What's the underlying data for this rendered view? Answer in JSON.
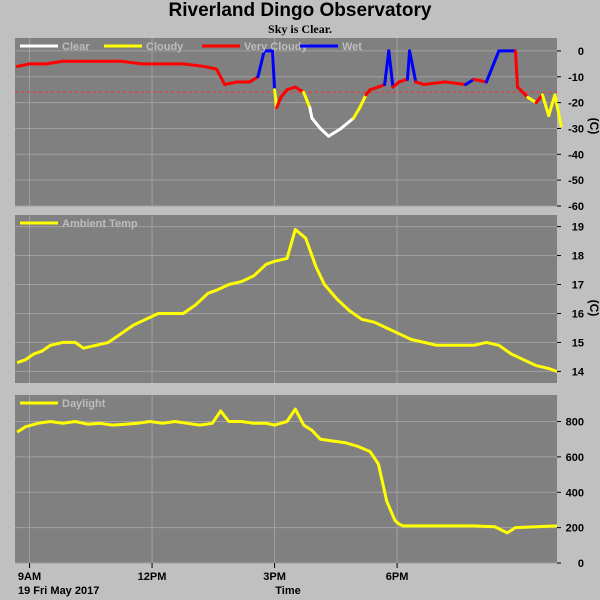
{
  "page": {
    "title": "Riverland Dingo Observatory",
    "subtitle": "Sky is Clear.",
    "date": "19 Fri May 2017",
    "xlabel": "Time"
  },
  "chart_data": [
    {
      "type": "line",
      "title": "",
      "unit": "(C)",
      "x_ticks": [
        "9AM",
        "12PM",
        "3PM",
        "6PM"
      ],
      "x_tick_values": [
        8.8,
        11.75,
        14.7,
        17.65
      ],
      "xlim": [
        8.45,
        21.5
      ],
      "ylim": [
        -60,
        5
      ],
      "y_ticks": [
        0,
        -10,
        -20,
        -30,
        -40,
        -50,
        -60
      ],
      "threshold_line": -16,
      "series": [
        {
          "name": "Clear",
          "color": "#ffffff"
        },
        {
          "name": "Cloudy",
          "color": "#ffff00"
        },
        {
          "name": "Very Cloudy",
          "color": "#ff0000"
        },
        {
          "name": "Wet",
          "color": "#0000ff"
        }
      ],
      "points": [
        [
          8.5,
          -6,
          "Very Cloudy"
        ],
        [
          8.8,
          -5,
          "Very Cloudy"
        ],
        [
          9.2,
          -5,
          "Very Cloudy"
        ],
        [
          9.6,
          -4,
          "Very Cloudy"
        ],
        [
          10.0,
          -4,
          "Very Cloudy"
        ],
        [
          10.5,
          -4,
          "Very Cloudy"
        ],
        [
          11.0,
          -4,
          "Very Cloudy"
        ],
        [
          11.5,
          -5,
          "Very Cloudy"
        ],
        [
          12.0,
          -5,
          "Very Cloudy"
        ],
        [
          12.5,
          -5,
          "Very Cloudy"
        ],
        [
          13.0,
          -6,
          "Very Cloudy"
        ],
        [
          13.3,
          -7,
          "Very Cloudy"
        ],
        [
          13.5,
          -13,
          "Very Cloudy"
        ],
        [
          13.8,
          -12,
          "Very Cloudy"
        ],
        [
          14.1,
          -12,
          "Very Cloudy"
        ],
        [
          14.3,
          -10,
          "Very Cloudy"
        ],
        [
          14.45,
          0,
          "Wet"
        ],
        [
          14.65,
          0,
          "Wet"
        ],
        [
          14.7,
          -15,
          "Wet"
        ],
        [
          14.75,
          -22,
          "Cloudy"
        ],
        [
          14.85,
          -18,
          "Very Cloudy"
        ],
        [
          15.0,
          -15,
          "Very Cloudy"
        ],
        [
          15.2,
          -14,
          "Very Cloudy"
        ],
        [
          15.4,
          -16,
          "Very Cloudy"
        ],
        [
          15.5,
          -20,
          "Cloudy"
        ],
        [
          15.55,
          -22,
          "Cloudy"
        ],
        [
          15.6,
          -26,
          "Clear"
        ],
        [
          15.8,
          -30,
          "Clear"
        ],
        [
          16.0,
          -33,
          "Clear"
        ],
        [
          16.3,
          -30,
          "Clear"
        ],
        [
          16.6,
          -26,
          "Clear"
        ],
        [
          16.75,
          -22,
          "Cloudy"
        ],
        [
          16.9,
          -17,
          "Cloudy"
        ],
        [
          17.0,
          -15,
          "Very Cloudy"
        ],
        [
          17.2,
          -14,
          "Very Cloudy"
        ],
        [
          17.35,
          -13,
          "Very Cloudy"
        ],
        [
          17.45,
          0,
          "Wet"
        ],
        [
          17.55,
          -14,
          "Wet"
        ],
        [
          17.7,
          -12,
          "Very Cloudy"
        ],
        [
          17.9,
          -11,
          "Very Cloudy"
        ],
        [
          17.95,
          0,
          "Wet"
        ],
        [
          18.1,
          -12,
          "Wet"
        ],
        [
          18.3,
          -13,
          "Very Cloudy"
        ],
        [
          18.8,
          -12,
          "Very Cloudy"
        ],
        [
          19.3,
          -13,
          "Very Cloudy"
        ],
        [
          19.5,
          -11,
          "Wet"
        ],
        [
          19.8,
          -12,
          "Very Cloudy"
        ],
        [
          20.1,
          0,
          "Wet"
        ],
        [
          20.5,
          0,
          "Wet"
        ],
        [
          20.55,
          -14,
          "Very Cloudy"
        ],
        [
          20.8,
          -18,
          "Very Cloudy"
        ],
        [
          21.0,
          -20,
          "Cloudy"
        ],
        [
          21.15,
          -17,
          "Very Cloudy"
        ],
        [
          21.3,
          -25,
          "Cloudy"
        ],
        [
          21.45,
          -17,
          "Cloudy"
        ],
        [
          21.6,
          -29,
          "Cloudy"
        ]
      ]
    },
    {
      "type": "line",
      "title": "",
      "unit": "(C)",
      "x_ticks": [
        "9AM",
        "12PM",
        "3PM",
        "6PM"
      ],
      "x_tick_values": [
        8.8,
        11.75,
        14.7,
        17.65
      ],
      "xlim": [
        8.45,
        21.5
      ],
      "ylim": [
        13.6,
        19.4
      ],
      "y_ticks": [
        14,
        15,
        16,
        17,
        18,
        19
      ],
      "series": [
        {
          "name": "Ambient Temp",
          "color": "#ffff00",
          "x": [
            8.5,
            8.7,
            8.9,
            9.1,
            9.3,
            9.6,
            9.9,
            10.1,
            10.4,
            10.7,
            11.0,
            11.3,
            11.6,
            11.9,
            12.2,
            12.5,
            12.8,
            13.1,
            13.3,
            13.6,
            13.9,
            14.2,
            14.5,
            14.7,
            15.0,
            15.2,
            15.45,
            15.7,
            15.9,
            16.2,
            16.5,
            16.8,
            17.1,
            17.4,
            17.7,
            18.0,
            18.3,
            18.6,
            18.9,
            19.2,
            19.5,
            19.8,
            20.1,
            20.4,
            20.7,
            21.0,
            21.3,
            21.5
          ],
          "values": [
            14.3,
            14.4,
            14.6,
            14.7,
            14.9,
            15.0,
            15.0,
            14.8,
            14.9,
            15.0,
            15.3,
            15.6,
            15.8,
            16.0,
            16.0,
            16.0,
            16.3,
            16.7,
            16.8,
            17.0,
            17.1,
            17.3,
            17.7,
            17.8,
            17.9,
            18.9,
            18.6,
            17.6,
            17.0,
            16.5,
            16.1,
            15.8,
            15.7,
            15.5,
            15.3,
            15.1,
            15.0,
            14.9,
            14.9,
            14.9,
            14.9,
            15.0,
            14.9,
            14.6,
            14.4,
            14.2,
            14.1,
            14.0
          ]
        }
      ]
    },
    {
      "type": "line",
      "title": "",
      "unit": "",
      "x_ticks": [
        "9AM",
        "12PM",
        "3PM",
        "6PM"
      ],
      "x_tick_values": [
        8.8,
        11.75,
        14.7,
        17.65
      ],
      "xlim": [
        8.45,
        21.5
      ],
      "ylim": [
        0,
        950
      ],
      "y_ticks": [
        0,
        200,
        400,
        600,
        800
      ],
      "series": [
        {
          "name": "Daylight",
          "color": "#ffff00",
          "x": [
            8.5,
            8.7,
            9.0,
            9.3,
            9.6,
            9.9,
            10.2,
            10.5,
            10.8,
            11.1,
            11.4,
            11.7,
            12.0,
            12.3,
            12.6,
            12.9,
            13.2,
            13.4,
            13.6,
            13.9,
            14.2,
            14.5,
            14.7,
            15.0,
            15.2,
            15.4,
            15.6,
            15.8,
            16.1,
            16.4,
            16.7,
            17.0,
            17.2,
            17.4,
            17.6,
            17.7,
            17.8,
            17.9,
            18.1,
            18.5,
            19.0,
            19.5,
            20.0,
            20.3,
            20.5,
            21.0,
            21.5
          ],
          "values": [
            740,
            770,
            790,
            800,
            790,
            800,
            785,
            790,
            780,
            785,
            790,
            800,
            790,
            800,
            790,
            780,
            790,
            860,
            800,
            800,
            790,
            790,
            780,
            800,
            870,
            780,
            750,
            700,
            690,
            680,
            660,
            630,
            560,
            350,
            240,
            220,
            210,
            210,
            210,
            210,
            210,
            210,
            205,
            170,
            200,
            205,
            210
          ]
        }
      ]
    }
  ]
}
